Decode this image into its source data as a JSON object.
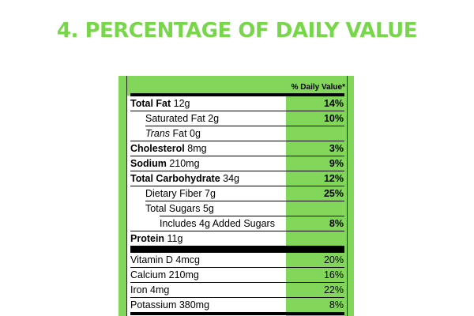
{
  "heading": "4. PERCENTAGE OF DAILY VALUE",
  "label": {
    "dv_header": "% Daily Value*",
    "nutrients": [
      {
        "bold": "Total Fat",
        "rest": " 12g",
        "pct": "14%"
      },
      {
        "bold": "",
        "rest": "Saturated Fat 2g",
        "pct": "10%"
      },
      {
        "italic": "Trans",
        "rest": " Fat 0g",
        "pct": ""
      },
      {
        "bold": "Cholesterol",
        "rest": " 8mg",
        "pct": "3%"
      },
      {
        "bold": "Sodium",
        "rest": " 210mg",
        "pct": "9%"
      },
      {
        "bold": "Total Carbohydrate",
        "rest": " 34g",
        "pct": "12%"
      },
      {
        "bold": "",
        "rest": "Dietary Fiber 7g",
        "pct": "25%"
      },
      {
        "bold": "",
        "rest": "Total Sugars 5g",
        "pct": ""
      },
      {
        "bold": "",
        "rest": "Includes 4g Added Sugars",
        "pct": "8%"
      },
      {
        "bold": "Protein",
        "rest": " 11g",
        "pct": ""
      }
    ],
    "vitamins": [
      {
        "name": "Vitamin D 4mcg",
        "pct": "20%"
      },
      {
        "name": "Calcium 210mg",
        "pct": "16%"
      },
      {
        "name": "Iron 4mg",
        "pct": "22%"
      },
      {
        "name": "Potassium 380mg",
        "pct": "8%"
      }
    ]
  },
  "colors": {
    "accent": "#82d65a",
    "heading": "#78d64b"
  }
}
